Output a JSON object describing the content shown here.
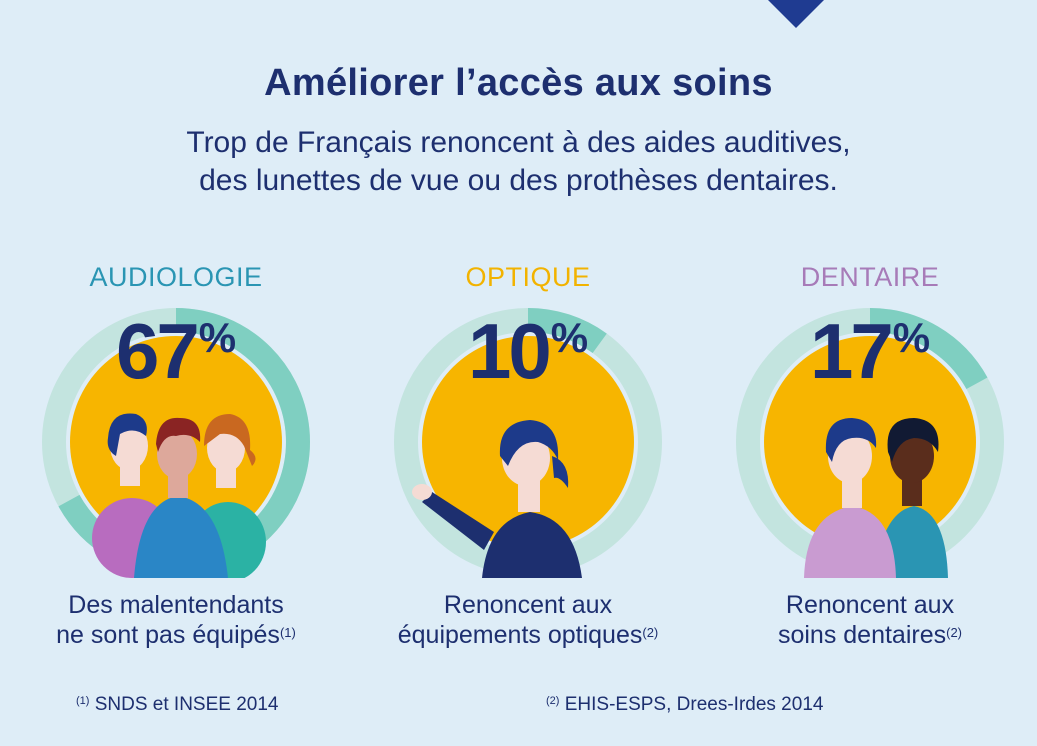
{
  "header": {
    "title": "Améliorer l’accès aux soins",
    "subtitle_line1": "Trop de Français renoncent à des aides auditives,",
    "subtitle_line2": "des lunettes de vue ou des prothèses dentaires."
  },
  "panels": [
    {
      "category": "AUDIOLOGIE",
      "value": "67",
      "percent": 67,
      "sign": "%",
      "category_color": "#2a95b3",
      "caption_line1": "Des malentendants",
      "caption_line2": "ne sont pas équipés",
      "note_ref": "(1)"
    },
    {
      "category": "OPTIQUE",
      "value": "10",
      "percent": 10,
      "sign": "%",
      "category_color": "#f2b300",
      "caption_line1": "Renoncent aux",
      "caption_line2": "équipements optiques",
      "note_ref": "(2)"
    },
    {
      "category": "DENTAIRE",
      "value": "17",
      "percent": 17,
      "sign": "%",
      "category_color": "#a77bb8",
      "caption_line1": "Renoncent aux",
      "caption_line2": "soins dentaires",
      "note_ref": "(2)"
    }
  ],
  "sources": [
    {
      "ref": "(1)",
      "text": "SNDS et INSEE 2014"
    },
    {
      "ref": "(2)",
      "text": "EHIS-ESPS, Drees-Irdes 2014"
    }
  ],
  "colors": {
    "background": "#deedf7",
    "navy": "#1d2f6f",
    "yellow_disc": "#f7b500",
    "ring_light": "#c3e4df",
    "ring_teal": "#7fcfc1"
  }
}
